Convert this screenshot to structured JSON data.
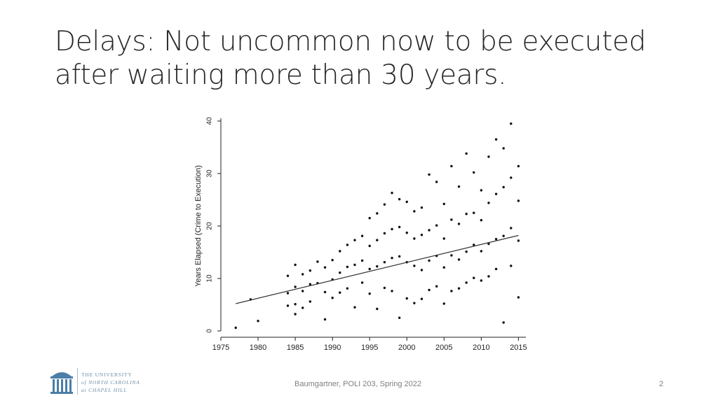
{
  "slide": {
    "title_line1": "Delays: Not uncommon now to be executed",
    "title_line2": "after waiting more than 30 years.",
    "footer": "Baumgartner, POLI 203, Spring 2022",
    "page_number": "2"
  },
  "logo": {
    "line1": "THE UNIVERSITY",
    "line2": "of NORTH CAROLINA",
    "line3": "at CHAPEL HILL",
    "color": "#4b7ea8"
  },
  "chart_data": {
    "type": "scatter",
    "title": "",
    "xlabel": "",
    "ylabel": "Years Elapsed (Crime to Execution)",
    "xlim": [
      1975,
      2016
    ],
    "ylim": [
      0,
      40
    ],
    "xticks": [
      1975,
      1980,
      1985,
      1990,
      1995,
      2000,
      2005,
      2010,
      2015
    ],
    "yticks": [
      0,
      10,
      20,
      30,
      40
    ],
    "grid": false,
    "point_color": "#111111",
    "trend_line": {
      "x": [
        1977,
        2015
      ],
      "y": [
        5.2,
        18.2
      ]
    },
    "points_x": [
      1977,
      1979,
      1980,
      1984,
      1984,
      1984,
      1985,
      1985,
      1985,
      1985,
      1986,
      1986,
      1986,
      1987,
      1987,
      1987,
      1988,
      1988,
      1989,
      1989,
      1989,
      1990,
      1990,
      1990,
      1991,
      1991,
      1991,
      1992,
      1992,
      1992,
      1993,
      1993,
      1993,
      1994,
      1994,
      1994,
      1995,
      1995,
      1995,
      1995,
      1996,
      1996,
      1996,
      1996,
      1997,
      1997,
      1997,
      1997,
      1998,
      1998,
      1998,
      1998,
      1999,
      1999,
      1999,
      1999,
      2000,
      2000,
      2000,
      2000,
      2001,
      2001,
      2001,
      2001,
      2002,
      2002,
      2002,
      2002,
      2003,
      2003,
      2003,
      2003,
      2004,
      2004,
      2004,
      2004,
      2005,
      2005,
      2005,
      2005,
      2006,
      2006,
      2006,
      2006,
      2007,
      2007,
      2007,
      2007,
      2008,
      2008,
      2008,
      2008,
      2009,
      2009,
      2009,
      2009,
      2010,
      2010,
      2010,
      2010,
      2011,
      2011,
      2011,
      2011,
      2012,
      2012,
      2012,
      2012,
      2013,
      2013,
      2013,
      2013,
      2014,
      2014,
      2014,
      2014,
      2015,
      2015,
      2015,
      2015
    ],
    "points_y": [
      0.6,
      6,
      1.9,
      10.5,
      7.2,
      4.8,
      12.6,
      8.4,
      5.1,
      3.2,
      10.8,
      7.6,
      4.4,
      11.5,
      8.9,
      5.6,
      13.2,
      9.1,
      12.1,
      7.4,
      2.2,
      13.5,
      9.8,
      6.3,
      15.2,
      11.1,
      7.3,
      16.4,
      12.2,
      8.1,
      17.3,
      12.6,
      4.5,
      18.1,
      13.4,
      9.2,
      21.5,
      16.2,
      11.8,
      7.1,
      22.4,
      17.3,
      12.3,
      4.2,
      24.1,
      18.6,
      13.1,
      8.2,
      26.3,
      19.4,
      13.9,
      7.6,
      25.1,
      19.8,
      14.2,
      2.5,
      24.6,
      18.7,
      13.1,
      6.2,
      22.8,
      17.6,
      12.4,
      5.3,
      23.5,
      18.3,
      11.6,
      6.1,
      29.8,
      19.2,
      13.4,
      7.8,
      28.4,
      20.1,
      14.3,
      8.5,
      24.2,
      17.6,
      12.1,
      5.2,
      31.4,
      21.2,
      14.4,
      7.6,
      27.5,
      20.4,
      13.6,
      8.1,
      33.8,
      22.3,
      15.1,
      9.2,
      30.2,
      22.5,
      16.4,
      10.1,
      26.8,
      21.1,
      15.2,
      9.6,
      33.2,
      24.4,
      16.6,
      10.4,
      36.5,
      26.1,
      17.5,
      11.8,
      34.8,
      27.4,
      18.1,
      1.6,
      39.5,
      29.2,
      19.6,
      12.4,
      31.4,
      24.8,
      17.2,
      6.4
    ]
  }
}
